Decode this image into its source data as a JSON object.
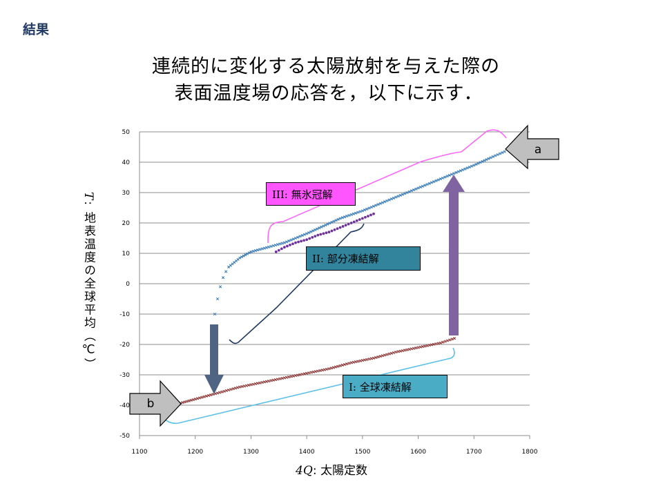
{
  "slide": {
    "section_label": "結果"
  },
  "title": {
    "line1": "連続的に変化する太陽放射を与えた際の",
    "line2": "表面温度場の応答を，以下に示す．"
  },
  "axes": {
    "xlabel_symbol": "4Q",
    "xlabel_text": ": 太陽定数",
    "ylabel_symbol": "T",
    "ylabel_text": ": 地表温度の全球平均（℃）"
  },
  "annotations": {
    "box_iii": "III: 無氷冠解",
    "box_ii": "II:  部分凍結解",
    "box_i": "I:  全球凍結解",
    "arrow_a": "a",
    "arrow_b": "b"
  },
  "colors": {
    "ice_free": "#2E75B6",
    "partial": "#7030A0",
    "snowball": "#8B2E2E",
    "box_iii": "#FF55FF",
    "box_ii": "#31849B",
    "box_i": "#4BACC6",
    "bracket_iii": "#FF66FF",
    "bracket_ii": "#1F3864",
    "bracket_i": "#5BC0E8",
    "down_arrow": "#4F6382",
    "up_arrow": "#8064A2"
  },
  "chart_data": {
    "type": "scatter",
    "xlim": [
      1100,
      1800
    ],
    "ylim": [
      -50,
      50
    ],
    "x_ticks": [
      1100,
      1200,
      1300,
      1400,
      1500,
      1600,
      1700,
      1800
    ],
    "y_ticks": [
      50,
      40,
      30,
      20,
      10,
      0,
      -10,
      -20,
      -30,
      -40,
      -50
    ],
    "grid": "horizontal",
    "series": [
      {
        "key": "ice_free",
        "marker": "x",
        "points": [
          [
            1235,
            -10
          ],
          [
            1240,
            -5
          ],
          [
            1245,
            -1
          ],
          [
            1250,
            2
          ],
          [
            1255,
            4
          ],
          [
            1260,
            5.5
          ],
          [
            1270,
            7
          ],
          [
            1280,
            8.5
          ],
          [
            1290,
            9.5
          ],
          [
            1300,
            10.5
          ],
          [
            1320,
            11.5
          ],
          [
            1340,
            12.5
          ],
          [
            1360,
            13.5
          ],
          [
            1380,
            15
          ],
          [
            1400,
            16.5
          ],
          [
            1430,
            19
          ],
          [
            1460,
            21.5
          ],
          [
            1500,
            24
          ],
          [
            1540,
            27
          ],
          [
            1580,
            30
          ],
          [
            1620,
            33
          ],
          [
            1660,
            36
          ],
          [
            1700,
            39
          ],
          [
            1730,
            41.5
          ],
          [
            1755,
            43.5
          ]
        ]
      },
      {
        "key": "partial",
        "marker": "dot",
        "points": [
          [
            1345,
            10.5
          ],
          [
            1360,
            12
          ],
          [
            1380,
            13.5
          ],
          [
            1400,
            14.5
          ],
          [
            1420,
            16
          ],
          [
            1440,
            17
          ],
          [
            1460,
            18.5
          ],
          [
            1480,
            20
          ],
          [
            1500,
            21.5
          ],
          [
            1520,
            23
          ]
        ]
      },
      {
        "key": "snowball",
        "marker": "x",
        "points": [
          [
            1170,
            -39.5
          ],
          [
            1200,
            -38
          ],
          [
            1240,
            -36
          ],
          [
            1280,
            -34
          ],
          [
            1320,
            -32.5
          ],
          [
            1360,
            -31
          ],
          [
            1400,
            -29.5
          ],
          [
            1440,
            -28
          ],
          [
            1480,
            -26
          ],
          [
            1520,
            -24.5
          ],
          [
            1560,
            -22.5
          ],
          [
            1600,
            -21
          ],
          [
            1640,
            -19.5
          ],
          [
            1665,
            -18
          ]
        ]
      }
    ]
  }
}
